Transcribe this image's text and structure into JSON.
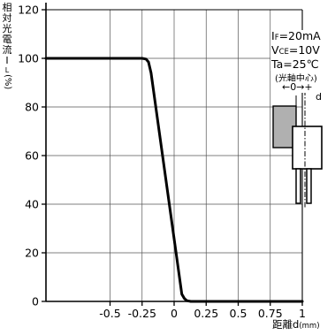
{
  "chart_data": {
    "type": "line",
    "ylabel_chars": [
      "相",
      "対",
      "光",
      "電",
      "流",
      "I",
      "L",
      "(%)"
    ],
    "xlabel": "距離d",
    "xunit": "(mm)",
    "xlim": [
      -1.0,
      1.0
    ],
    "ylim": [
      0,
      120
    ],
    "x_ticks": [
      -0.5,
      -0.25,
      0,
      0.25,
      0.5,
      0.75,
      1
    ],
    "x_tick_labels": [
      "-0.5",
      "-0.25",
      "0",
      "0.25",
      "0.5",
      "0.75",
      "1"
    ],
    "y_ticks": [
      0,
      20,
      40,
      60,
      80,
      100,
      120
    ],
    "y_tick_labels": [
      "0",
      "20",
      "40",
      "60",
      "80",
      "100",
      "120"
    ],
    "grid": true,
    "x": [
      -1.0,
      -0.3,
      -0.25,
      -0.22,
      -0.2,
      -0.18,
      0.06,
      0.08,
      0.1,
      0.13,
      0.15,
      1.0
    ],
    "values": [
      100,
      100,
      100,
      99.7,
      98.5,
      94,
      3,
      1.2,
      0.3,
      0,
      0,
      0
    ],
    "conditions": {
      "if_main": "I",
      "if_sub": "F",
      "if_val": "=20mA",
      "vce_main": "V",
      "vce_sub": "CE",
      "vce_val": "=10V",
      "ta": "Ta=25℃"
    },
    "annotation_center": "(光軸中心)",
    "annotation_arrow": "←0→+",
    "annotation_d": "d"
  }
}
